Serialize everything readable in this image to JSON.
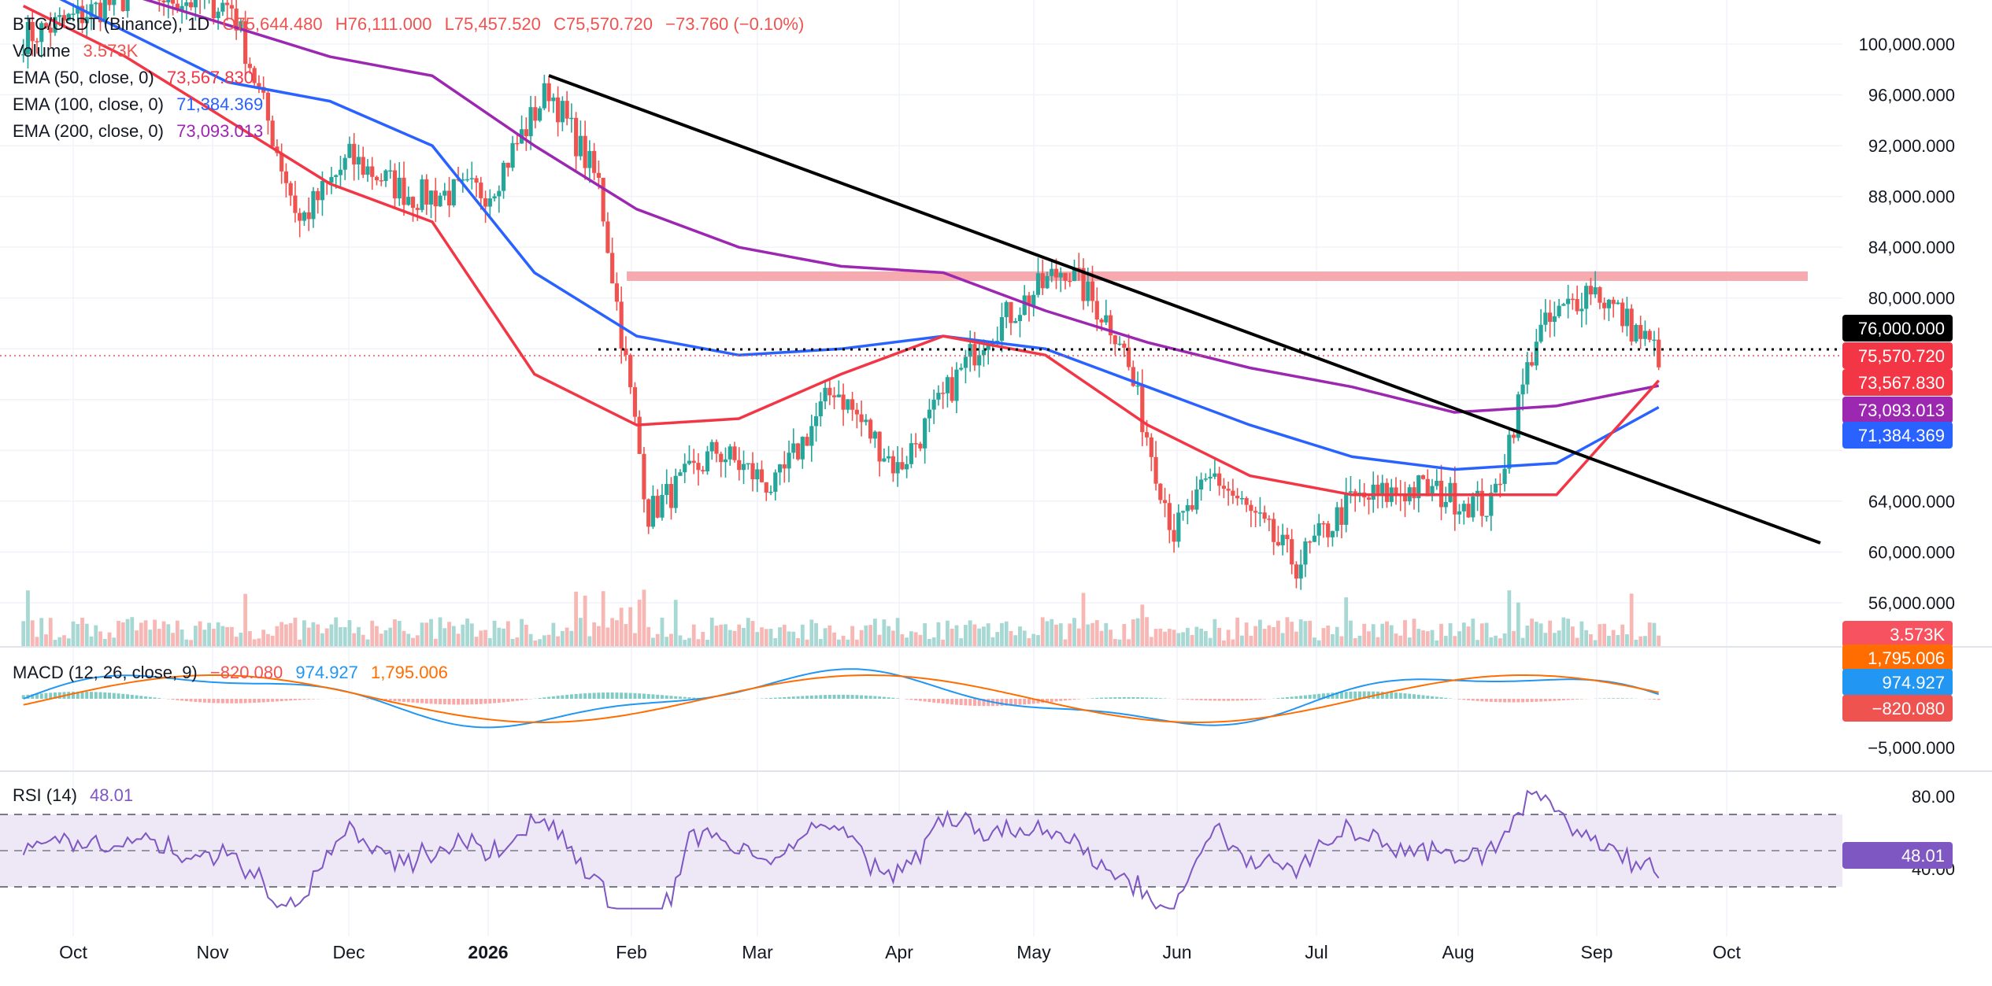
{
  "header": {
    "symbol": "BTC/USDT (Binance), 1D",
    "open": "O75,644.480",
    "high": "H76,111.000",
    "low": "L75,457.520",
    "close": "C75,570.720",
    "change": "−73.760 (−0.10%)"
  },
  "indicators": {
    "volume": {
      "label": "Volume",
      "value": "3.573K"
    },
    "ema50": {
      "label": "EMA (50, close, 0)",
      "value": "73,567.830"
    },
    "ema100": {
      "label": "EMA (100, close, 0)",
      "value": "71,384.369"
    },
    "ema200": {
      "label": "EMA (200, close, 0)",
      "value": "73,093.013"
    },
    "macd": {
      "label": "MACD (12, 26, close, 9)",
      "hist": "−820.080",
      "macd": "974.927",
      "signal": "1,795.006"
    },
    "rsi": {
      "label": "RSI (14)",
      "value": "48.01"
    }
  },
  "colors": {
    "up": "#26a69a",
    "down": "#ef5350",
    "ema50": "#f23645",
    "ema100": "#2962ff",
    "ema200": "#9c27b0",
    "trendline": "#000000",
    "resistance": "#f7a9b0",
    "macd": "#2196f3",
    "signal": "#ff6d00",
    "rsi": "#7e57c2",
    "rsi_band": "#ede7f6"
  },
  "chart_data": [
    {
      "type": "candlestick",
      "title": "BTC/USDT (Binance), 1D",
      "ylim": [
        54000,
        103000
      ],
      "y_ticks": [
        "100,000.000",
        "96,000.000",
        "92,000.000",
        "88,000.000",
        "84,000.000",
        "80,000.000",
        "64,000.000",
        "60,000.000",
        "56,000.000"
      ],
      "x_ticks": [
        "Oct",
        "Nov",
        "Dec",
        "2026",
        "Feb",
        "Mar",
        "Apr",
        "May",
        "Jun",
        "Jul",
        "Aug",
        "Sep",
        "Oct"
      ],
      "price_labels": {
        "76,000.000": "76,000.000",
        "last": "75,570.720",
        "ema50": "73,567.830",
        "ema200": "73,093.013",
        "ema100": "71,384.369",
        "volume": "3.573K"
      },
      "ohlc_path_approx": [
        {
          "date": "2025-09-20",
          "close": 100500
        },
        {
          "date": "2025-10-15",
          "close": 104000
        },
        {
          "date": "2025-11-05",
          "close": 103000
        },
        {
          "date": "2025-11-20",
          "close": 86000
        },
        {
          "date": "2025-12-01",
          "close": 91000
        },
        {
          "date": "2025-12-15",
          "close": 88000
        },
        {
          "date": "2026-01-01",
          "close": 88500
        },
        {
          "date": "2026-01-14",
          "close": 96500
        },
        {
          "date": "2026-01-25",
          "close": 89000
        },
        {
          "date": "2026-02-05",
          "close": 63000
        },
        {
          "date": "2026-02-20",
          "close": 68000
        },
        {
          "date": "2026-03-05",
          "close": 65000
        },
        {
          "date": "2026-03-18",
          "close": 73000
        },
        {
          "date": "2026-04-01",
          "close": 66500
        },
        {
          "date": "2026-04-20",
          "close": 77000
        },
        {
          "date": "2026-05-08",
          "close": 82500
        },
        {
          "date": "2026-05-20",
          "close": 77000
        },
        {
          "date": "2026-06-01",
          "close": 61500
        },
        {
          "date": "2026-06-10",
          "close": 66000
        },
        {
          "date": "2026-06-28",
          "close": 59000
        },
        {
          "date": "2026-07-10",
          "close": 64000
        },
        {
          "date": "2026-07-25",
          "close": 65000
        },
        {
          "date": "2026-08-10",
          "close": 63500
        },
        {
          "date": "2026-08-20",
          "close": 77000
        },
        {
          "date": "2026-09-01",
          "close": 81000
        },
        {
          "date": "2026-09-16",
          "close": 75570
        }
      ],
      "ema50": [
        103000,
        99000,
        94000,
        89000,
        86000,
        74000,
        70000,
        70500,
        74000,
        77000,
        75500,
        70000,
        66000,
        64500,
        64500,
        64500,
        73500
      ],
      "ema100": [
        105000,
        101000,
        97000,
        95500,
        92000,
        82000,
        77000,
        75500,
        76000,
        77000,
        76000,
        73000,
        70000,
        67500,
        66500,
        67000,
        71400
      ],
      "ema200": [
        106000,
        104000,
        101500,
        99000,
        97500,
        92000,
        87000,
        84000,
        82500,
        82000,
        79000,
        76500,
        74500,
        73000,
        71000,
        71500,
        73100
      ],
      "trendline": {
        "start": {
          "date": "2026-01-14",
          "value": 96500
        },
        "end": {
          "date": "2026-10-20",
          "value": 60800
        }
      },
      "resistance_zone": [
        81600,
        82400
      ],
      "level_dotted": 76000
    },
    {
      "type": "histogram",
      "title": "MACD (12, 26, close, 9)",
      "y_ticks": [
        "−5,000.000"
      ],
      "values": {
        "histogram": "−820.080",
        "macd": "974.927",
        "signal": "1,795.006"
      }
    },
    {
      "type": "line",
      "title": "RSI (14)",
      "y_ticks": [
        "80.00",
        "40.00"
      ],
      "bands": [
        70,
        50,
        30
      ],
      "last": 48.01
    }
  ]
}
